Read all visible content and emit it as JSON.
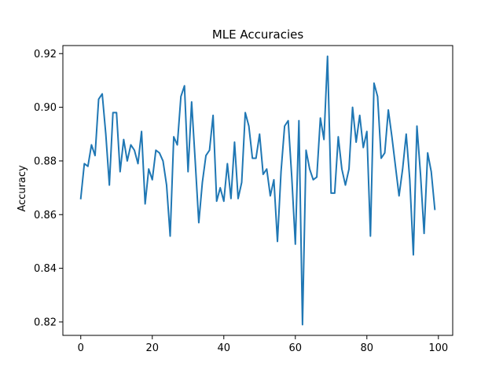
{
  "chart_data": {
    "type": "line",
    "title": "MLE Accuracies",
    "xlabel": "",
    "ylabel": "Accuracy",
    "xlim": [
      -5,
      104
    ],
    "ylim": [
      0.815,
      0.923
    ],
    "xticks": [
      0,
      20,
      40,
      60,
      80,
      100
    ],
    "yticks": [
      0.82,
      0.84,
      0.86,
      0.88,
      0.9,
      0.92
    ],
    "ytick_labels": [
      "0.82",
      "0.84",
      "0.86",
      "0.88",
      "0.90",
      "0.92"
    ],
    "grid": false,
    "line_color": "#1f77b4",
    "series": [
      {
        "x": [
          0,
          1,
          2,
          3,
          4,
          5,
          6,
          7,
          8,
          9,
          10,
          11,
          12,
          13,
          14,
          15,
          16,
          17,
          18,
          19,
          20,
          21,
          22,
          23,
          24,
          25,
          26,
          27,
          28,
          29,
          30,
          31,
          32,
          33,
          34,
          35,
          36,
          37,
          38,
          39,
          40,
          41,
          42,
          43,
          44,
          45,
          46,
          47,
          48,
          49,
          50,
          51,
          52,
          53,
          54,
          55,
          56,
          57,
          58,
          59,
          60,
          61,
          62,
          63,
          64,
          65,
          66,
          67,
          68,
          69,
          70,
          71,
          72,
          73,
          74,
          75,
          76,
          77,
          78,
          79,
          80,
          81,
          82,
          83,
          84,
          85,
          86,
          87,
          88,
          89,
          90,
          91,
          92,
          93,
          94,
          95,
          96,
          97,
          98,
          99
        ],
        "values": [
          0.866,
          0.879,
          0.878,
          0.886,
          0.882,
          0.903,
          0.905,
          0.89,
          0.871,
          0.898,
          0.898,
          0.876,
          0.888,
          0.88,
          0.886,
          0.884,
          0.879,
          0.891,
          0.864,
          0.877,
          0.873,
          0.884,
          0.883,
          0.88,
          0.871,
          0.852,
          0.889,
          0.886,
          0.904,
          0.908,
          0.876,
          0.902,
          0.88,
          0.857,
          0.872,
          0.882,
          0.884,
          0.897,
          0.865,
          0.87,
          0.865,
          0.879,
          0.866,
          0.887,
          0.866,
          0.872,
          0.898,
          0.893,
          0.881,
          0.881,
          0.89,
          0.875,
          0.877,
          0.867,
          0.873,
          0.85,
          0.876,
          0.893,
          0.895,
          0.874,
          0.849,
          0.895,
          0.819,
          0.884,
          0.877,
          0.873,
          0.874,
          0.896,
          0.888,
          0.919,
          0.868,
          0.868,
          0.889,
          0.877,
          0.871,
          0.877,
          0.9,
          0.887,
          0.897,
          0.885,
          0.891,
          0.852,
          0.909,
          0.904,
          0.881,
          0.883,
          0.899,
          0.889,
          0.878,
          0.867,
          0.877,
          0.89,
          0.873,
          0.845,
          0.893,
          0.875,
          0.853,
          0.883,
          0.876,
          0.862
        ]
      }
    ]
  }
}
